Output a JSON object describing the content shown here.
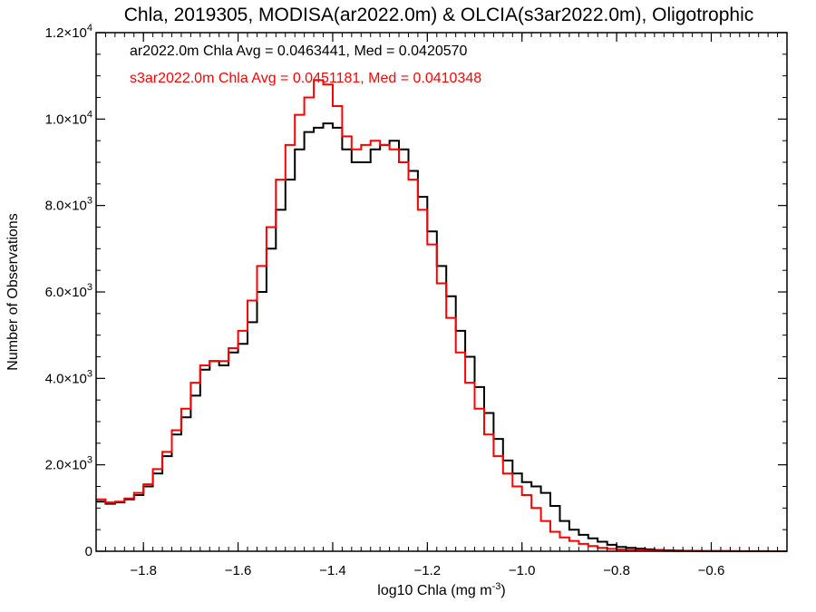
{
  "chart_data": {
    "type": "line",
    "step": true,
    "title": "Chla, 2019305, MODISA(ar2022.0m) & OLCIA(s3ar2022.0m), Oligotrophic",
    "xlabel_main": "log10 Chla (mg m",
    "xlabel_sup": "-3",
    "xlabel_end": ")",
    "ylabel": "Number of Observations",
    "xlim": [
      -1.9,
      -0.44
    ],
    "ylim": [
      0,
      12000
    ],
    "grid": false,
    "x_ticks": [
      {
        "v": -1.8,
        "label": "−1.8"
      },
      {
        "v": -1.6,
        "label": "−1.6"
      },
      {
        "v": -1.4,
        "label": "−1.4"
      },
      {
        "v": -1.2,
        "label": "−1.2"
      },
      {
        "v": -1.0,
        "label": "−1.0"
      },
      {
        "v": -0.8,
        "label": "−0.8"
      },
      {
        "v": -0.6,
        "label": "−0.6"
      }
    ],
    "y_ticks": [
      {
        "v": 0,
        "label": "0",
        "exp": ""
      },
      {
        "v": 2000,
        "label": "2.0×10",
        "exp": "3"
      },
      {
        "v": 4000,
        "label": "4.0×10",
        "exp": "3"
      },
      {
        "v": 6000,
        "label": "6.0×10",
        "exp": "3"
      },
      {
        "v": 8000,
        "label": "8.0×10",
        "exp": "3"
      },
      {
        "v": 10000,
        "label": "1.0×10",
        "exp": "4"
      },
      {
        "v": 12000,
        "label": "1.2×10",
        "exp": "4"
      }
    ],
    "series": [
      {
        "name": "ar2022.0m",
        "color": "#000000",
        "annotation": "ar2022.0m Chla Avg = 0.0463441, Med = 0.0420570",
        "x": [
          -1.9,
          -1.88,
          -1.86,
          -1.84,
          -1.82,
          -1.8,
          -1.78,
          -1.76,
          -1.74,
          -1.72,
          -1.7,
          -1.68,
          -1.66,
          -1.64,
          -1.62,
          -1.6,
          -1.58,
          -1.56,
          -1.54,
          -1.52,
          -1.5,
          -1.48,
          -1.46,
          -1.44,
          -1.42,
          -1.4,
          -1.38,
          -1.36,
          -1.34,
          -1.32,
          -1.3,
          -1.28,
          -1.26,
          -1.24,
          -1.22,
          -1.2,
          -1.18,
          -1.16,
          -1.14,
          -1.12,
          -1.1,
          -1.08,
          -1.06,
          -1.04,
          -1.02,
          -1.0,
          -0.98,
          -0.96,
          -0.94,
          -0.92,
          -0.9,
          -0.88,
          -0.86,
          -0.84,
          -0.82,
          -0.8,
          -0.78,
          -0.76,
          -0.74,
          -0.72,
          -0.7,
          -0.68,
          -0.66,
          -0.64,
          -0.62,
          -0.6,
          -0.58,
          -0.56,
          -0.54,
          -0.52,
          -0.5,
          -0.48,
          -0.46
        ],
        "y": [
          1150,
          1100,
          1130,
          1200,
          1300,
          1500,
          1800,
          2200,
          2700,
          3100,
          3600,
          4200,
          4400,
          4300,
          4600,
          4800,
          5300,
          6000,
          7000,
          7900,
          8600,
          9300,
          9700,
          9800,
          9900,
          9800,
          9300,
          9000,
          9000,
          9300,
          9400,
          9500,
          9300,
          8800,
          8200,
          7400,
          6600,
          5900,
          5100,
          4500,
          3800,
          3200,
          2600,
          2100,
          1800,
          1600,
          1500,
          1350,
          1050,
          700,
          500,
          380,
          300,
          220,
          150,
          100,
          80,
          60,
          45,
          30,
          22,
          15,
          10,
          8,
          6,
          5,
          4,
          3,
          3,
          2,
          2,
          1,
          1
        ]
      },
      {
        "name": "s3ar2022.0m",
        "color": "#ff0000",
        "annotation": "s3ar2022.0m Chla Avg = 0.0451181, Med = 0.0410348",
        "x": [
          -1.9,
          -1.88,
          -1.86,
          -1.84,
          -1.82,
          -1.8,
          -1.78,
          -1.76,
          -1.74,
          -1.72,
          -1.7,
          -1.68,
          -1.66,
          -1.64,
          -1.62,
          -1.6,
          -1.58,
          -1.56,
          -1.54,
          -1.52,
          -1.5,
          -1.48,
          -1.46,
          -1.44,
          -1.42,
          -1.4,
          -1.38,
          -1.36,
          -1.34,
          -1.32,
          -1.3,
          -1.28,
          -1.26,
          -1.24,
          -1.22,
          -1.2,
          -1.18,
          -1.16,
          -1.14,
          -1.12,
          -1.1,
          -1.08,
          -1.06,
          -1.04,
          -1.02,
          -1.0,
          -0.98,
          -0.96,
          -0.94,
          -0.92,
          -0.9,
          -0.88,
          -0.86,
          -0.84,
          -0.82,
          -0.8,
          -0.78,
          -0.76,
          -0.74,
          -0.72,
          -0.7,
          -0.68,
          -0.66,
          -0.64,
          -0.62,
          -0.6,
          -0.58,
          -0.56,
          -0.54,
          -0.52,
          -0.5,
          -0.48,
          -0.46
        ],
        "y": [
          1200,
          1130,
          1150,
          1220,
          1350,
          1550,
          1900,
          2300,
          2800,
          3300,
          3900,
          4300,
          4400,
          4400,
          4700,
          5100,
          5800,
          6600,
          7500,
          8600,
          9400,
          10100,
          10500,
          10900,
          10800,
          10300,
          9600,
          9300,
          9400,
          9500,
          9400,
          9300,
          9000,
          8600,
          7900,
          7100,
          6200,
          5400,
          4600,
          3900,
          3300,
          2700,
          2200,
          1800,
          1500,
          1300,
          1000,
          700,
          450,
          320,
          240,
          170,
          120,
          80,
          55,
          40,
          30,
          22,
          16,
          12,
          9,
          7,
          5,
          4,
          3,
          3,
          2,
          2,
          1,
          1,
          1,
          1,
          1
        ]
      }
    ]
  }
}
